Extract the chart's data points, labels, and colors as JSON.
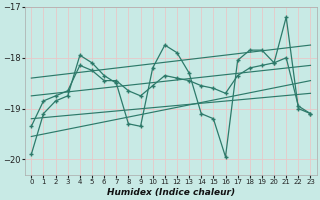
{
  "xlabel": "Humidex (Indice chaleur)",
  "bg_color": "#c8eae5",
  "grid_color": "#e8c8c8",
  "line_color": "#2d7a6a",
  "ylim": [
    -20.3,
    -17.0
  ],
  "xlim": [
    -0.5,
    23.5
  ],
  "yticks": [
    -20,
    -19,
    -18,
    -17
  ],
  "xtick_labels": [
    "0",
    "1",
    "2",
    "3",
    "4",
    "5",
    "6",
    "7",
    "8",
    "9",
    "10",
    "11",
    "12",
    "13",
    "14",
    "15",
    "16",
    "17",
    "18",
    "19",
    "20",
    "21",
    "22",
    "23"
  ],
  "series1_y": [
    -19.9,
    -19.1,
    -18.85,
    -18.75,
    -17.95,
    -18.1,
    -18.35,
    -18.5,
    -19.3,
    -19.35,
    -18.2,
    -17.75,
    -17.9,
    -18.3,
    -19.1,
    -19.2,
    -19.95,
    -18.05,
    -17.85,
    -17.85,
    -18.1,
    -17.2,
    -19.0,
    -19.1
  ],
  "series2_y": [
    -19.35,
    -18.85,
    -18.75,
    -18.65,
    -18.15,
    -18.25,
    -18.45,
    -18.45,
    -18.65,
    -18.75,
    -18.55,
    -18.35,
    -18.4,
    -18.45,
    -18.55,
    -18.6,
    -18.7,
    -18.35,
    -18.2,
    -18.15,
    -18.1,
    -18.0,
    -18.95,
    -19.1
  ],
  "trend_lines": [
    {
      "x0": 0,
      "x1": 23,
      "y0": -19.55,
      "y1": -18.45
    },
    {
      "x0": 0,
      "x1": 23,
      "y0": -19.2,
      "y1": -18.7
    },
    {
      "x0": 0,
      "x1": 23,
      "y0": -18.75,
      "y1": -18.15
    },
    {
      "x0": 0,
      "x1": 23,
      "y0": -18.4,
      "y1": -17.75
    }
  ]
}
